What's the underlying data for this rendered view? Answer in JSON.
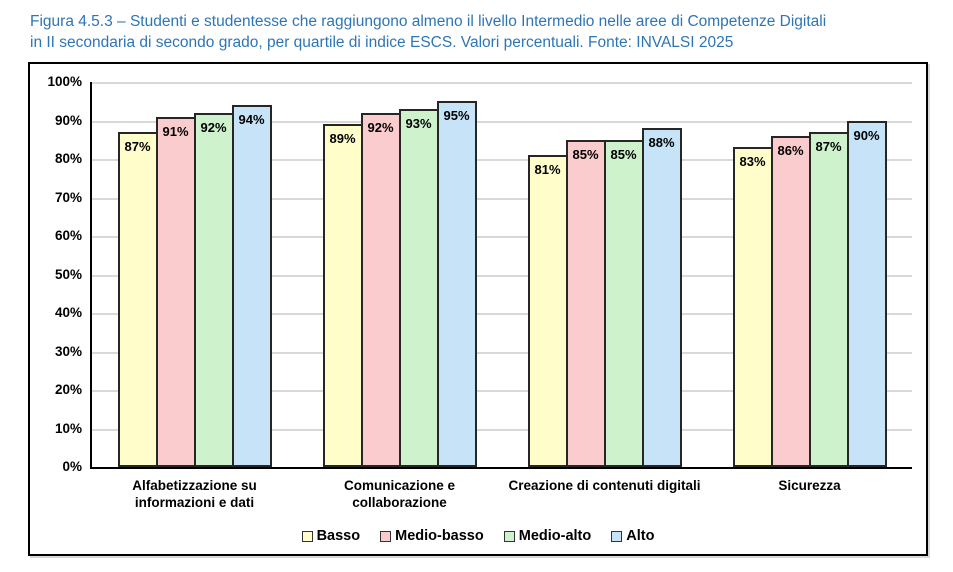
{
  "title": {
    "lines": [
      "Figura 4.5.3 – Studenti e studentesse che raggiungono almeno il livello Intermedio nelle aree di Competenze Digitali",
      "in II secondaria di secondo grado, per quartile di indice ESCS. Valori percentuali. Fonte: INVALSI 2025"
    ],
    "color": "#2E75B6"
  },
  "chart_data": {
    "type": "bar",
    "categories": [
      "Alfabetizzazione su informazioni e dati",
      "Comunicazione e collaborazione",
      "Creazione di contenuti digitali",
      "Sicurezza"
    ],
    "category_label_lines": [
      [
        "Alfabetizzazione su",
        "informazioni e dati"
      ],
      [
        "Comunicazione e",
        "collaborazione"
      ],
      [
        "Creazione di contenuti digitali"
      ],
      [
        "Sicurezza"
      ]
    ],
    "series": [
      {
        "name": "Basso",
        "color": "#FFFECB",
        "values": [
          87,
          89,
          81,
          83
        ]
      },
      {
        "name": "Medio-basso",
        "color": "#FACCCE",
        "values": [
          91,
          92,
          85,
          86
        ]
      },
      {
        "name": "Medio-alto",
        "color": "#CDF2CC",
        "values": [
          92,
          93,
          85,
          87
        ]
      },
      {
        "name": "Alto",
        "color": "#C6E3F7",
        "values": [
          94,
          95,
          88,
          90
        ]
      }
    ],
    "value_label_format": "{v}%",
    "ylim": [
      0,
      100
    ],
    "ytick_step": 10,
    "ytick_labels": [
      "0%",
      "10%",
      "20%",
      "30%",
      "40%",
      "50%",
      "60%",
      "70%",
      "80%",
      "90%",
      "100%"
    ],
    "grid": "horizontal",
    "legend_position": "bottom",
    "colors": {
      "bar_border": "#262626",
      "gridline": "#D9D9D9",
      "axis": "#000000",
      "frame_border": "#000000",
      "title_text": "#2E75B6",
      "label_text": "#000000"
    }
  }
}
